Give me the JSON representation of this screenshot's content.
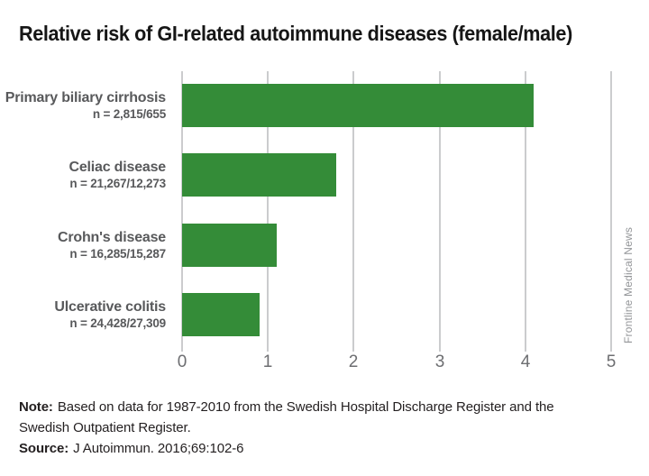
{
  "title": "Relative risk of GI-related autoimmune diseases (female/male)",
  "chart_data": {
    "type": "bar",
    "orientation": "horizontal",
    "title": "Relative risk of GI-related autoimmune diseases (female/male)",
    "categories": [
      "Primary biliary cirrhosis",
      "Celiac disease",
      "Crohn's disease",
      "Ulcerative colitis"
    ],
    "n_labels": [
      "n = 2,815/655",
      "n = 21,267/12,273",
      "n = 16,285/15,287",
      "n = 24,428/27,309"
    ],
    "values": [
      4.1,
      1.8,
      1.1,
      0.9
    ],
    "xlabel": "",
    "ylabel": "",
    "xlim": [
      0,
      5
    ],
    "x_ticks": [
      0,
      1,
      2,
      3,
      4,
      5
    ],
    "grid": true,
    "legend": "none",
    "bar_color": "#348c38"
  },
  "watermark": "Frontline Medical News",
  "footer": {
    "note_label": "Note:",
    "note_lines": [
      "Based on data for 1987-2010 from the Swedish Hospital Discharge Register and the",
      "Swedish Outpatient Register."
    ],
    "source_label": "Source:",
    "source_text": "J Autoimmun. 2016;69:102-6"
  },
  "colors": {
    "bar_green": "#348c38",
    "category_label_gray": "#58595b",
    "tick_label_gray": "#6d6e71",
    "gridline_gray": "#cbccce",
    "watermark_gray": "#939598",
    "text_black": "#231f20"
  }
}
